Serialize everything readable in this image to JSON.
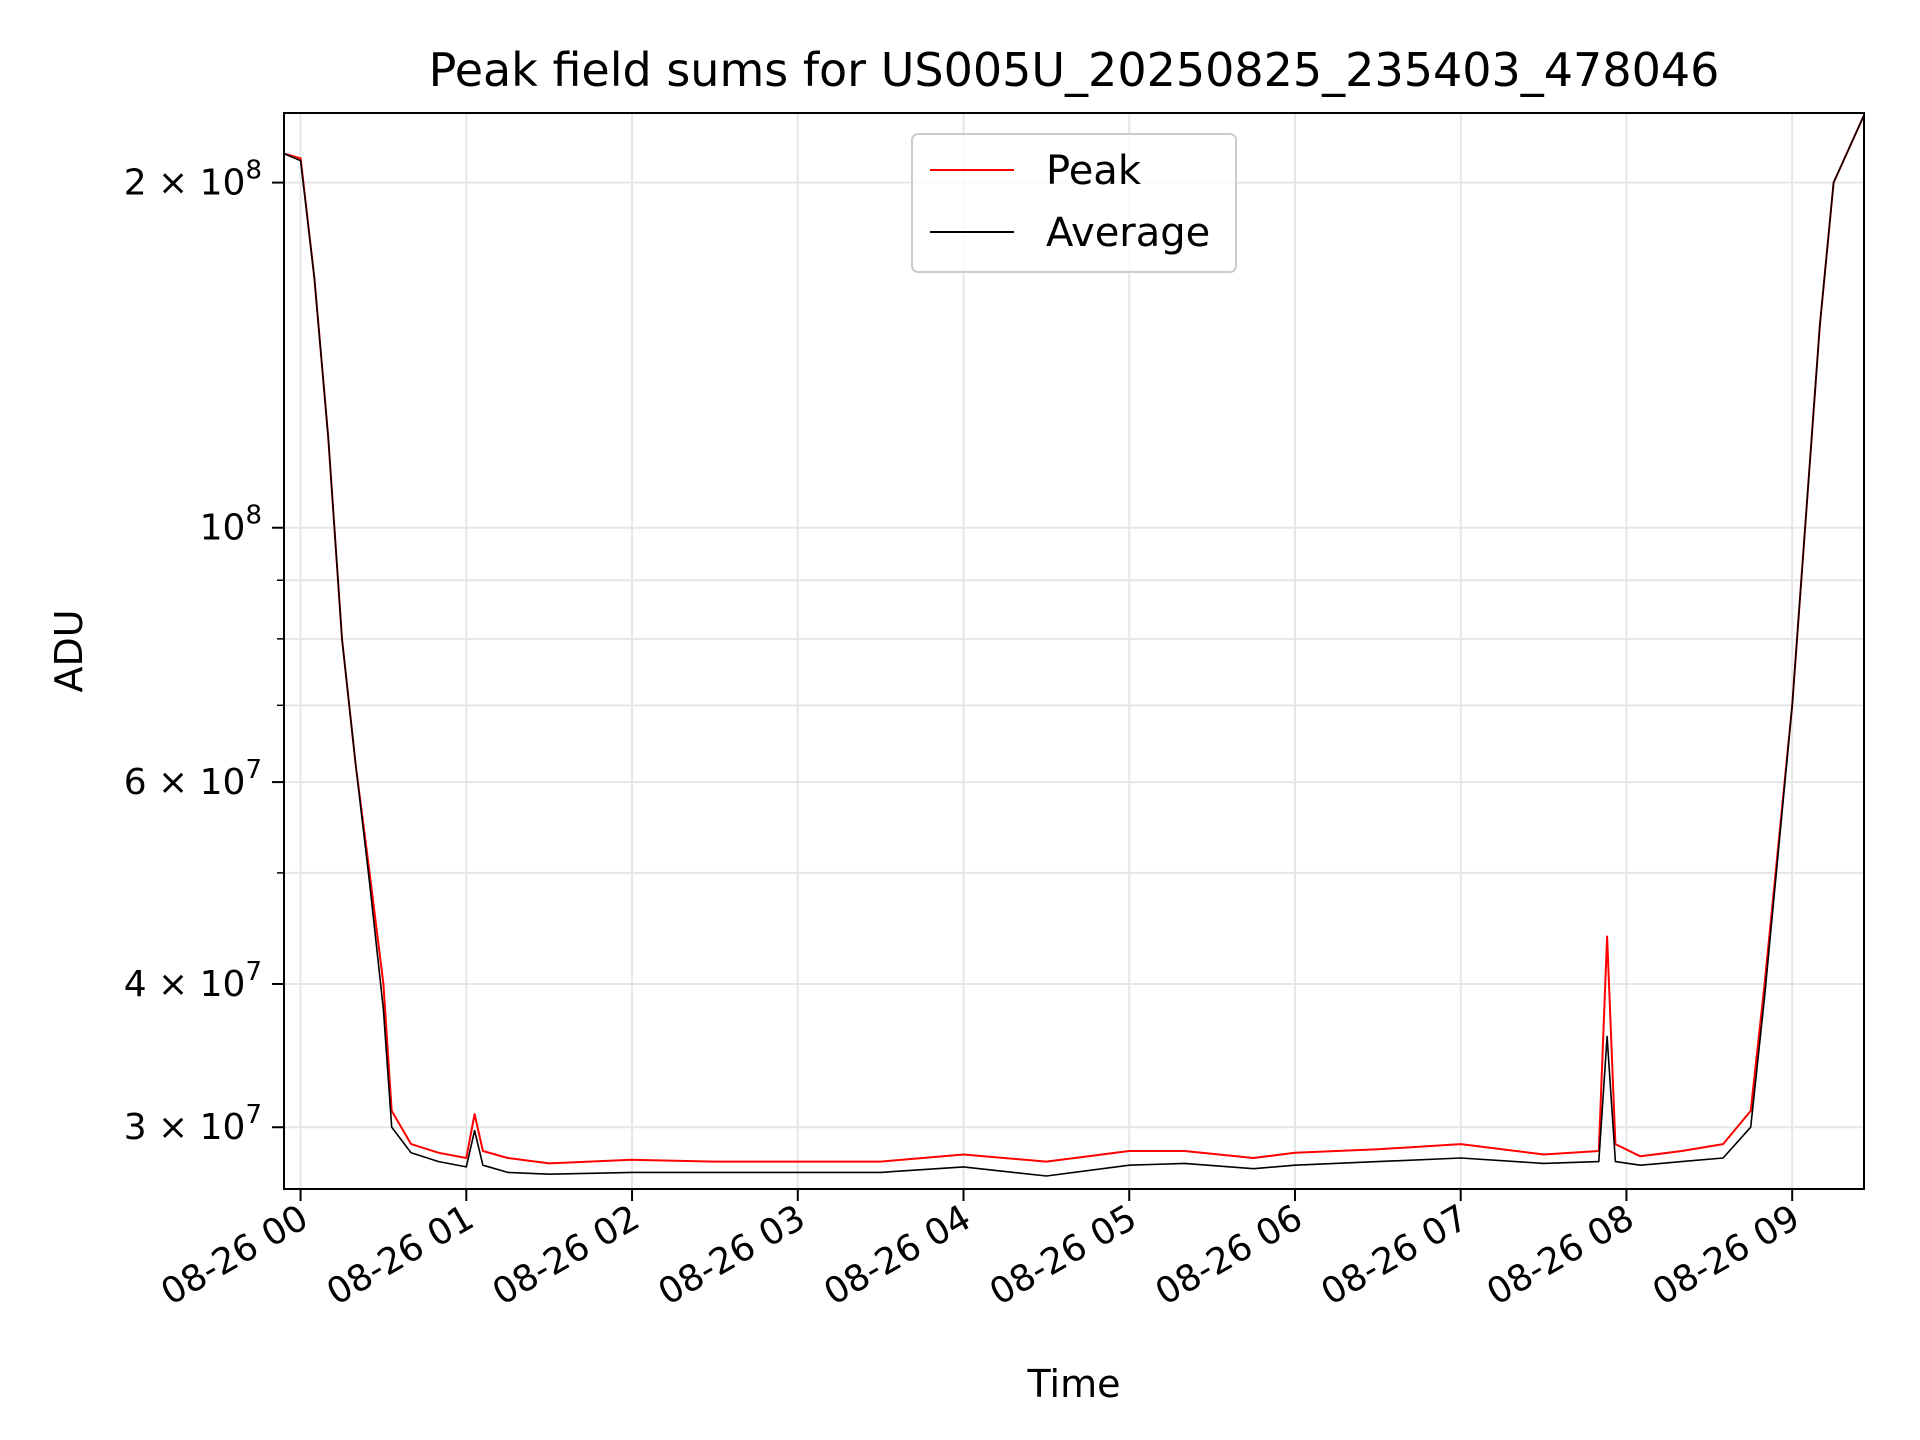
{
  "chart_data": {
    "type": "line",
    "title": "Peak field sums for US005U_20250825_235403_478046",
    "xlabel": "Time",
    "ylabel": "ADU",
    "yscale": "log",
    "xlim": [
      "2025-08-25 23:54",
      "2025-08-26 09:26"
    ],
    "ylim": [
      26500000,
      230000000
    ],
    "grid": true,
    "legend_position": "top-center",
    "x_ticks": [
      "08-26 00",
      "08-26 01",
      "08-26 02",
      "08-26 03",
      "08-26 04",
      "08-26 05",
      "08-26 06",
      "08-26 07",
      "08-26 08",
      "08-26 09"
    ],
    "y_ticks": [
      {
        "value": 200000000,
        "mantissa": "2",
        "exponent": "8"
      },
      {
        "value": 100000000,
        "mantissa": "",
        "exponent": "8"
      },
      {
        "value": 60000000,
        "mantissa": "6",
        "exponent": "7"
      },
      {
        "value": 40000000,
        "mantissa": "4",
        "exponent": "7"
      },
      {
        "value": 30000000,
        "mantissa": "3",
        "exponent": "7"
      }
    ],
    "y_minor_ticks": [
      90000000,
      80000000,
      70000000,
      50000000
    ],
    "series": [
      {
        "name": "Peak",
        "color": "#ff0000",
        "x": [
          "2025-08-25 23:54",
          "2025-08-26 00:00",
          "2025-08-26 00:05",
          "2025-08-26 00:10",
          "2025-08-26 00:15",
          "2025-08-26 00:20",
          "2025-08-26 00:25",
          "2025-08-26 00:30",
          "2025-08-26 00:33",
          "2025-08-26 00:40",
          "2025-08-26 00:50",
          "2025-08-26 01:00",
          "2025-08-26 01:03",
          "2025-08-26 01:06",
          "2025-08-26 01:15",
          "2025-08-26 01:30",
          "2025-08-26 02:00",
          "2025-08-26 02:30",
          "2025-08-26 03:00",
          "2025-08-26 03:30",
          "2025-08-26 04:00",
          "2025-08-26 04:30",
          "2025-08-26 05:00",
          "2025-08-26 05:20",
          "2025-08-26 05:45",
          "2025-08-26 06:00",
          "2025-08-26 06:30",
          "2025-08-26 07:00",
          "2025-08-26 07:30",
          "2025-08-26 07:50",
          "2025-08-26 07:53",
          "2025-08-26 07:56",
          "2025-08-26 08:05",
          "2025-08-26 08:20",
          "2025-08-26 08:35",
          "2025-08-26 08:45",
          "2025-08-26 08:50",
          "2025-08-26 09:00",
          "2025-08-26 09:10",
          "2025-08-26 09:15",
          "2025-08-26 09:26"
        ],
        "y": [
          212000000,
          210000000,
          165000000,
          120000000,
          80000000,
          62000000,
          50000000,
          40000000,
          31000000,
          29000000,
          28500000,
          28200000,
          30800000,
          28600000,
          28200000,
          27900000,
          28100000,
          28000000,
          28000000,
          28000000,
          28400000,
          28000000,
          28600000,
          28600000,
          28200000,
          28500000,
          28700000,
          29000000,
          28400000,
          28600000,
          44000000,
          29000000,
          28300000,
          28600000,
          29000000,
          31000000,
          40000000,
          70000000,
          150000000,
          200000000,
          229000000
        ]
      },
      {
        "name": "Average",
        "color": "#000000",
        "x": [
          "2025-08-25 23:54",
          "2025-08-26 00:00",
          "2025-08-26 00:05",
          "2025-08-26 00:10",
          "2025-08-26 00:15",
          "2025-08-26 00:20",
          "2025-08-26 00:25",
          "2025-08-26 00:30",
          "2025-08-26 00:33",
          "2025-08-26 00:40",
          "2025-08-26 00:50",
          "2025-08-26 01:00",
          "2025-08-26 01:03",
          "2025-08-26 01:06",
          "2025-08-26 01:15",
          "2025-08-26 01:30",
          "2025-08-26 02:00",
          "2025-08-26 02:30",
          "2025-08-26 03:00",
          "2025-08-26 03:30",
          "2025-08-26 04:00",
          "2025-08-26 04:30",
          "2025-08-26 05:00",
          "2025-08-26 05:20",
          "2025-08-26 05:45",
          "2025-08-26 06:00",
          "2025-08-26 06:30",
          "2025-08-26 07:00",
          "2025-08-26 07:30",
          "2025-08-26 07:50",
          "2025-08-26 07:53",
          "2025-08-26 07:56",
          "2025-08-26 08:05",
          "2025-08-26 08:20",
          "2025-08-26 08:35",
          "2025-08-26 08:45",
          "2025-08-26 08:50",
          "2025-08-26 09:00",
          "2025-08-26 09:10",
          "2025-08-26 09:15",
          "2025-08-26 09:26"
        ],
        "y": [
          212000000,
          209000000,
          165000000,
          120000000,
          80000000,
          62000000,
          49000000,
          38000000,
          30000000,
          28500000,
          28000000,
          27700000,
          29800000,
          27800000,
          27400000,
          27300000,
          27400000,
          27400000,
          27400000,
          27400000,
          27700000,
          27200000,
          27800000,
          27900000,
          27600000,
          27800000,
          28000000,
          28200000,
          27900000,
          28000000,
          36000000,
          28000000,
          27800000,
          28000000,
          28200000,
          30000000,
          39000000,
          70000000,
          150000000,
          200000000,
          229000000
        ]
      }
    ]
  }
}
